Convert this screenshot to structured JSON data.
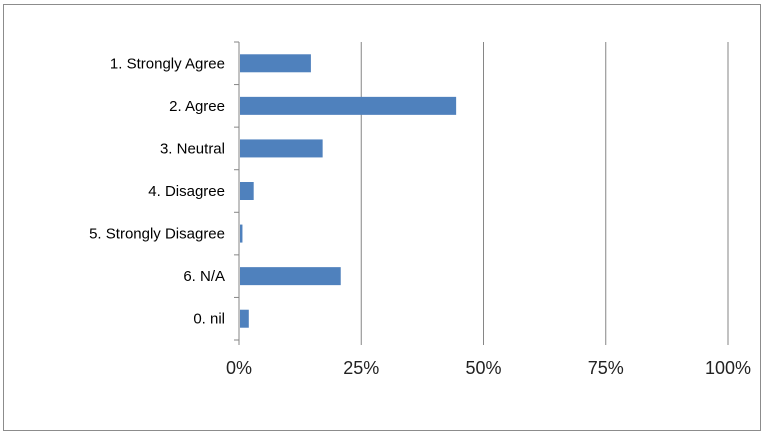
{
  "chart_data": {
    "type": "bar",
    "orientation": "horizontal",
    "categories": [
      "1. Strongly Agree",
      "2. Agree",
      "3. Neutral",
      "4. Disagree",
      "5. Strongly Disagree",
      "6. N/A",
      "0. nil"
    ],
    "values": [
      14.5,
      44.2,
      16.9,
      2.8,
      0.5,
      20.6,
      1.8
    ],
    "x_ticks": [
      "0%",
      "25%",
      "50%",
      "75%",
      "100%"
    ],
    "xlim": [
      0,
      100
    ],
    "grid": true,
    "legend": "none",
    "bar_color": "#4F81BD",
    "gridline_color": "#868686"
  }
}
